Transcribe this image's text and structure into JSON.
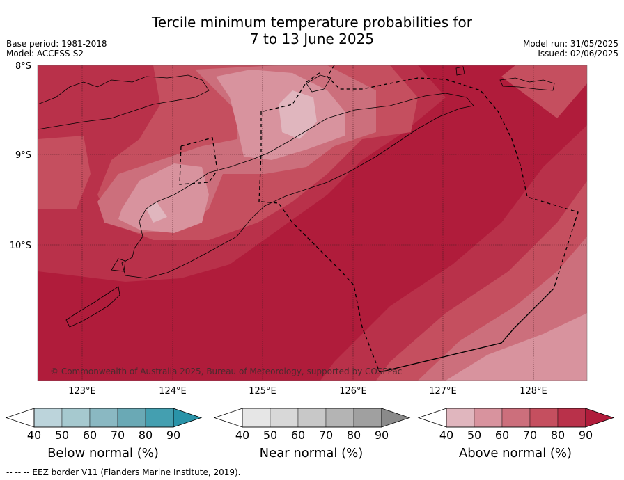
{
  "header": {
    "title_line1": "Tercile minimum temperature probabilities for",
    "title_line2": "7 to 13 June 2025",
    "base_period": "Base period: 1981-2018",
    "model": "Model: ACCESS-S2",
    "model_run": "Model run: 31/05/2025",
    "issued": "Issued: 02/06/2025"
  },
  "map": {
    "region": "Timor",
    "lat_labels": [
      "8°S",
      "9°S",
      "10°S"
    ],
    "lon_labels": [
      "123°E",
      "124°E",
      "125°E",
      "126°E",
      "127°E",
      "128°E"
    ],
    "copyright": "© Commonwealth of Australia 2025, Bureau of Meteorology, supported by COSPPac",
    "gridlines": true
  },
  "colorbars": [
    {
      "label": "Below normal (%)",
      "ticks": [
        "40",
        "50",
        "60",
        "70",
        "80",
        "90"
      ],
      "colors": [
        "#ffffff",
        "#bcd4db",
        "#a6c9cf",
        "#8ab8c2",
        "#6aa9b5",
        "#449fb0",
        "#2a93a8"
      ]
    },
    {
      "label": "Near normal (%)",
      "ticks": [
        "40",
        "50",
        "60",
        "70",
        "80",
        "90"
      ],
      "colors": [
        "#ffffff",
        "#e6e6e6",
        "#d8d8d8",
        "#c8c8c8",
        "#b4b4b4",
        "#a0a0a0",
        "#8a8a8a"
      ]
    },
    {
      "label": "Above normal (%)",
      "ticks": [
        "40",
        "50",
        "60",
        "70",
        "80",
        "90"
      ],
      "colors": [
        "#ffffff",
        "#e0b6be",
        "#d8939e",
        "#cc6f7c",
        "#c54f5f",
        "#b9314a",
        "#b01c3b"
      ]
    }
  ],
  "footnote": "--  --  -- EEZ border V11 (Flanders Marine Institute, 2019)."
}
